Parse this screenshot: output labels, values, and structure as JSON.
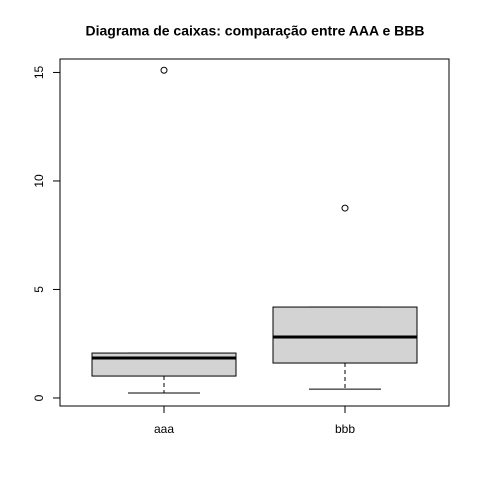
{
  "chart_data": {
    "type": "boxplot",
    "title": "Diagrama de caixas: comparação entre AAA e BBB",
    "categories": [
      "aaa",
      "bbb"
    ],
    "boxes": [
      {
        "min": 0.23,
        "q1": 1.01,
        "median": 1.84,
        "q3": 2.07,
        "max": 2.07,
        "outliers": [
          15.1
        ]
      },
      {
        "min": 0.41,
        "q1": 1.61,
        "median": 2.81,
        "q3": 4.19,
        "max": 4.19,
        "outliers": [
          8.75
        ]
      }
    ],
    "color": "#d3d3d3",
    "ylim": [
      -0.37,
      15.62
    ],
    "yticks": [
      0,
      5,
      10,
      15
    ]
  }
}
